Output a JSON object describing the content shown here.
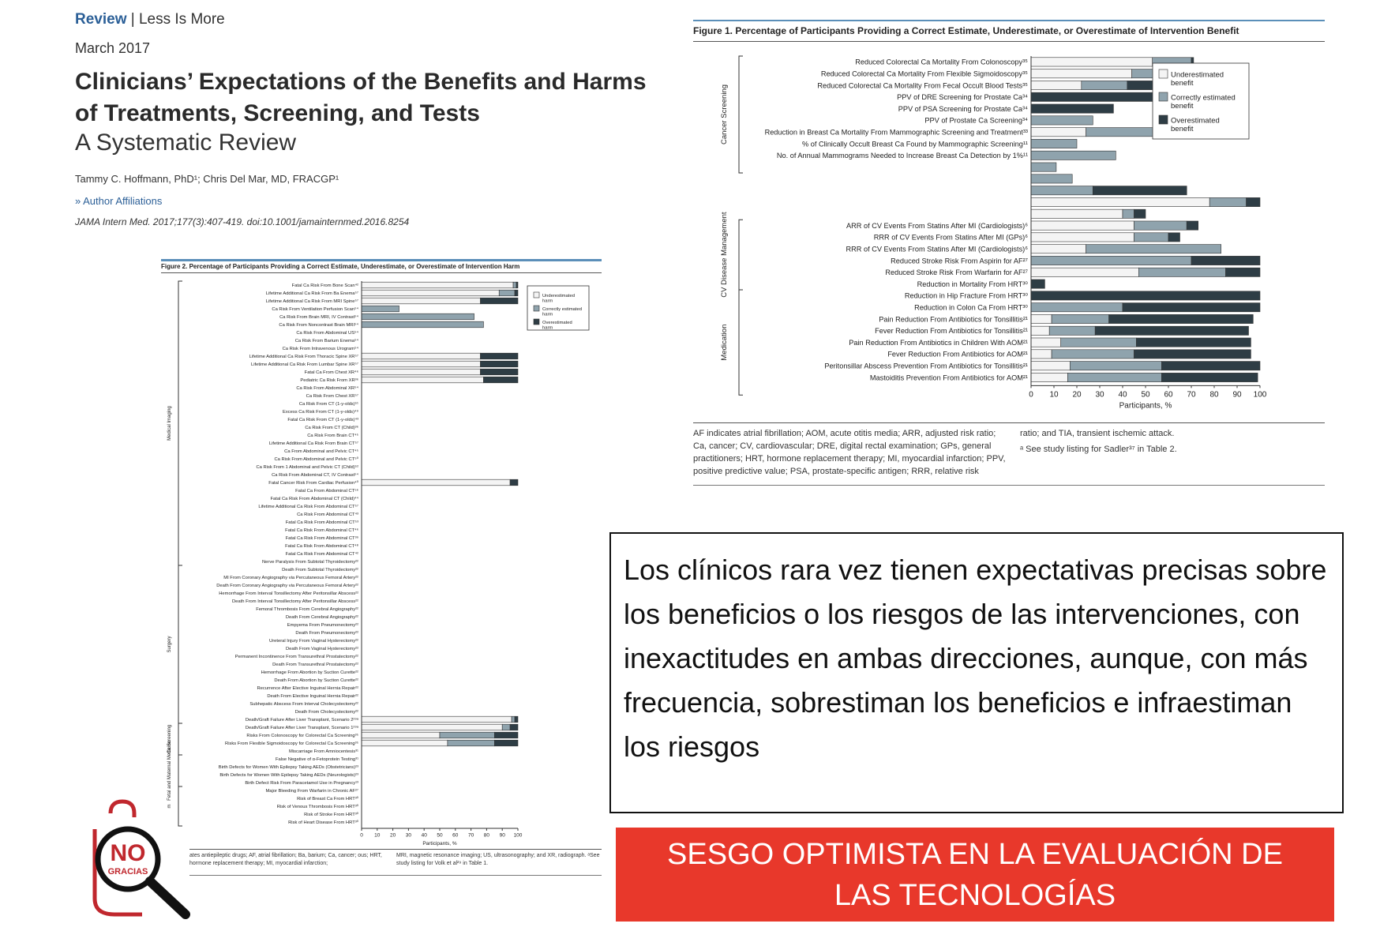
{
  "header": {
    "kind": "Review",
    "separator": "|",
    "topic": "Less Is More",
    "date": "March 2017",
    "title": "Clinicians’ Expectations of the Benefits and Harms of Treatments, Screening, and Tests",
    "subtitle": "A Systematic Review",
    "authors": "Tammy C. Hoffmann, PhD¹; Chris Del Mar, MD, FRACGP¹",
    "affiliations_link": "Author Affiliations",
    "affiliations_icon": "double-chevron-right-icon",
    "citation": "JAMA Intern Med. 2017;177(3):407-419. doi:10.1001/jamainternmed.2016.8254"
  },
  "figure_harms": {
    "title": "Figure 2. Percentage of Participants Providing a Correct Estimate, Underestimate, or Overestimate of Intervention Harm",
    "groups": [
      {
        "name": "Medical Imaging",
        "start": 0,
        "end": 35
      },
      {
        "name": "Surgery",
        "start": 36,
        "end": 55
      },
      {
        "name": "Ca Screening",
        "start": 56,
        "end": 59
      },
      {
        "name": "Fetal and Maternal Medicine",
        "start": 60,
        "end": 63
      },
      {
        "name": "m",
        "start": 64,
        "end": 68
      }
    ],
    "footnote_left": "ates antiepileptic drugs; AF, atrial fibrillation; Ba, barium; Ca, cancer; ous; HRT, hormone replacement therapy; MI, myocardial infarction;",
    "footnote_right": "MRI, magnetic resonance imaging; US, ultrasonography; and XR, radiograph. ᵃSee study listing for Volk et al²⁹ in Table 1."
  },
  "figure_benefits": {
    "title": "Figure 1. Percentage of Participants Providing a Correct Estimate, Underestimate, or Overestimate of Intervention Benefit",
    "groups": [
      {
        "name": "Cancer Screening",
        "start": 0,
        "end": 9
      },
      {
        "name": "CV Disease Management",
        "start": 14,
        "end": 19
      },
      {
        "name": "Medication",
        "start": 20,
        "end": 28
      }
    ],
    "footnote_left": "AF indicates atrial fibrillation; AOM, acute otitis media; ARR, adjusted risk ratio; Ca, cancer; CV, cardiovascular; DRE, digital rectal examination; GPs, general practitioners; HRT, hormone replacement therapy; MI, myocardial infarction; PPV, positive predictive value; PSA, prostate-specific antigen; RRR, relative risk",
    "footnote_right_1": "ratio; and TIA, transient ischemic attack.",
    "footnote_right_2": "ᵃ See study listing for Sadler³⁷ in Table 2."
  },
  "quote": "Los clínicos rara vez tienen expectativas precisas sobre los beneficios o los riesgos de las intervenciones, con inexactitudes en ambas direcciones, aunque, con más frecuencia, sobrestiman los beneficios e infraestiman los riesgos",
  "banner": {
    "line1": "SESGO OPTIMISTA EN LA EVALUACIÓN DE",
    "line2": "LAS TECNOLOGÍAS"
  },
  "logo": {
    "word1": "NO",
    "word2": "GRACIAS",
    "icon": "magnifying-glass-icon"
  },
  "colors": {
    "under": "#f4f4f4",
    "correct": "#8fa3ad",
    "over": "#2e3d45",
    "accent_blue": "#2b5f97",
    "banner_red": "#e8382b",
    "logo_red": "#c0272d"
  },
  "chart_data": [
    {
      "type": "bar",
      "stacked": "horizontal",
      "title": "Figure 1. Percentage of Participants Providing a Correct Estimate, Underestimate, or Overestimate of Intervention Benefit",
      "xlabel": "Participants, %",
      "xlim": [
        0,
        100
      ],
      "xticks": [
        0,
        10,
        20,
        30,
        40,
        50,
        60,
        70,
        80,
        90,
        100
      ],
      "legend": [
        "Underestimated benefit",
        "Correctly estimated benefit",
        "Overestimated benefit"
      ],
      "legend_position": "top-right",
      "categories": [
        "Reduced Colorectal Ca Mortality From Colonoscopy³⁵",
        "Reduced Colorectal Ca Mortality From Flexible Sigmoidoscopy³⁵",
        "Reduced Colorectal Ca Mortality From Fecal Occult Blood Tests³⁵",
        "PPV of DRE Screening for Prostate Ca³⁴",
        "PPV of PSA Screening for Prostate Ca³⁴",
        "PPV of Prostate Ca Screening³⁴",
        "Reduction in Breast Ca Mortality From Mammographic Screening and Treatment³³",
        "% of Clinically Occult Breast Ca Found by Mammographic Screening¹¹",
        "No. of Annual Mammograms Needed to Increase Breast Ca Detection by 1%¹¹",
        "",
        "",
        "",
        "",
        "",
        "ARR of CV Events From Statins After MI (Cardiologists)⁶",
        "RRR of CV Events From Statins After MI (GPs)⁶",
        "RRR of CV Events From Statins After MI (Cardiologists)⁶",
        "Reduced Stroke Risk From Aspirin for AF²⁷",
        "Reduced Stroke Risk From Warfarin for AF²⁷",
        "Reduction in Mortality From HRT³⁰",
        "Reduction in Hip Fracture From HRT³⁰",
        "Reduction in Colon Ca From HRT³⁰",
        "Pain Reduction From Antibiotics for Tonsillitis²¹",
        "Fever Reduction From Antibiotics for Tonsillitis²¹",
        "Pain Reduction From Antibiotics in Children With AOM²¹",
        "Fever Reduction From Antibiotics for AOM²¹",
        "Peritonsillar Abscess Prevention From Antibiotics for Tonsillitis²¹",
        "Mastoiditis Prevention From Antibiotics for AOM²¹"
      ],
      "series": [
        {
          "name": "Underestimated benefit",
          "values": [
            53,
            44,
            22,
            0,
            0,
            0,
            24,
            0,
            0,
            0,
            0,
            0,
            78,
            40,
            45,
            45,
            24,
            0,
            47,
            0,
            0,
            0,
            9,
            8,
            13,
            9,
            17,
            16
          ]
        },
        {
          "name": "Correctly estimated benefit",
          "values": [
            17,
            31,
            20,
            0,
            0,
            27,
            56,
            20,
            37,
            11,
            18,
            27,
            16,
            5,
            23,
            15,
            59,
            70,
            38,
            0,
            0,
            40,
            25,
            20,
            33,
            36,
            40,
            41
          ]
        },
        {
          "name": "Overestimated benefit",
          "values": [
            1,
            4,
            16,
            56,
            36,
            0,
            0,
            0,
            0,
            0,
            0,
            41,
            6,
            5,
            5,
            5,
            0,
            30,
            15,
            6,
            100,
            60,
            63,
            67,
            50,
            51,
            43,
            42
          ]
        }
      ]
    },
    {
      "type": "bar",
      "stacked": "horizontal",
      "title": "Figure 2. Percentage of Participants Providing a Correct Estimate, Underestimate, or Overestimate of Intervention Harm",
      "xlabel": "Participants, %",
      "xlim": [
        0,
        100
      ],
      "xticks": [
        0,
        10,
        20,
        30,
        40,
        50,
        60,
        70,
        80,
        90,
        100
      ],
      "legend": [
        "Underestimated harm",
        "Correctly estimated harm",
        "Overestimated harm"
      ],
      "legend_position": "top-right",
      "categories": [
        "Fatal Ca Risk From Bone Scan⁴²",
        "Lifetime Additional Ca Risk From Ba Enema⁵⁷",
        "Lifetime Additional Ca Risk From MRI Spine⁵⁷",
        "Ca Risk From Ventilation Perfusion Scan⁵⁴",
        "Ca Risk From Brain MRI, IV Contrast⁵⁴",
        "Ca Risk From Noncontrast Brain MRI⁵⁴",
        "Ca Risk From Abdominal US⁵⁴",
        "Ca Risk From Barium Enema⁵⁴",
        "Ca Risk From Intravenous Urogram⁵⁴",
        "Lifetime Additional Ca Risk From Thoracic Spine XR⁵⁷",
        "Lifetime Additional Ca Risk From Lumbar Spine XR⁵⁷",
        "Fatal Ca From Chest XR⁴⁶",
        "Pediatric Ca Risk From XR³⁶",
        "Ca Risk From Abdominal XR⁵⁴",
        "Ca Risk From Chest XR⁵⁷",
        "Ca Risk From CT (1-y-olds)⁵¹",
        "Excess Ca Risk From CT (1-y-olds)⁴⁹",
        "Fatal Ca Risk From CT (1-y-olds)⁴³",
        "Ca Risk From CT (Child)³⁶",
        "Ca Risk From Brain CT⁴⁵",
        "Lifetime Additional Ca Risk From Brain CT⁵⁷",
        "Ca From Abdominal and Pelvic CT⁴⁵",
        "Ca Risk From Abdominal and Pelvic CT⁵⁰",
        "Ca Risk From 1 Abdominal and Pelvic CT (Child)⁵²",
        "Ca Risk From Abdominal CT, IV Contrast⁵⁴",
        "Fatal Cancer Risk From Cardiac Perfusion⁴⁰",
        "Fatal Ca From Abdominal CT⁵⁶",
        "Fatal Ca Risk From Abdominal CT (Child)⁴⁴",
        "Lifetime Additional Ca Risk From Abdominal CT⁵⁷",
        "Ca Risk From Abdominal CT⁴³",
        "Fatal Ca Risk From Abdominal CT⁵³",
        "Fatal Ca Risk From Abdominal CT⁴⁶",
        "Fatal Ca Risk From Abdominal CT³⁹",
        "Fatal Ca Risk From Abdominal CT⁴⁸",
        "Fatal Ca Risk From Abdominal CT⁴²",
        "Nerve Paralysis From Subtotal Thyroidectomy²²",
        "Death From Subtotal Thyroidectomy²²",
        "MI From Coronary Angiography via Percutaneous Femoral Artery²²",
        "Death From Coronary Angiography via Percutaneous Femoral Artery²²",
        "Hemorrhage From Interval Tonsillectomy After Peritonsillar Abscess²²",
        "Death From Interval Tonsillectomy After Peritonsillar Abscess²²",
        "Femoral Thrombosis From Cerebral Angiography²²",
        "Death From Cerebral Angiography²²",
        "Empyema From Pneumonectomy²²",
        "Death From Pneumonectomy²²",
        "Ureteral Injury From Vaginal Hysterectomy²²",
        "Death From Vaginal Hysterectomy²²",
        "Permanent Incontinence From Transurethral Prostatectomy²²",
        "Death From Transurethral Prostatectomy²²",
        "Hemorrhage From Abortion by Suction Curette²²",
        "Death From Abortion by Suction Curette²²",
        "Recurrence After Elective Inguinal Hernia Repair²²",
        "Death From Elective Inguinal Hernia Repair²²",
        "Subhepatic Abscess From Interval Cholecystectomy²²",
        "Death From Cholecystectomy²²",
        "Death/Graft Failure After Liver Transplant, Scenario 2²⁹ᵃ",
        "Death/Graft Failure After Liver Transplant, Scenario 1²⁹ᵃ",
        "Risks From Colonoscopy for Colorectal Ca Screening³⁵",
        "Risks From Flexible Sigmoidoscopy for Colorectal Ca Screening³⁵",
        "Miscarriage From Amniocentesis³¹",
        "False Negative of α-Fetoprotein Testing³¹",
        "Birth Defects for Women With Epilepsy Taking AEDs (Obstetricians)²³",
        "Birth Defects for Women With Epilepsy Taking AEDs (Neurologists)²³",
        "Birth Defect Risk From Paracetamol Use in Pregnancy¹³",
        "Major Bleeding From Warfarin in Chronic AF²⁷",
        "Risk of Breast Ca From HRT³⁰",
        "Risk of Venous Thrombosis From HRT³⁰",
        "Risk of Stroke From HRT³⁰",
        "Risk of Heart Disease From HRT³⁰"
      ],
      "series": [
        {
          "name": "Underestimated harm",
          "values": [
            97,
            88,
            76,
            0,
            0,
            0,
            0,
            0,
            0,
            76,
            76,
            76,
            78,
            0,
            0,
            0,
            0,
            0,
            0,
            0,
            0,
            0,
            0,
            0,
            0,
            95,
            0,
            0,
            0,
            0,
            0,
            0,
            0,
            0,
            0,
            0,
            0,
            0,
            0,
            0,
            0,
            0,
            0,
            0,
            0,
            0,
            0,
            0,
            0,
            0,
            0,
            0,
            0,
            0,
            0,
            96,
            90,
            50,
            55,
            0,
            0,
            0,
            0,
            0,
            0,
            0,
            0,
            0,
            0
          ]
        },
        {
          "name": "Correctly estimated harm",
          "values": [
            2,
            10,
            0,
            24,
            72,
            78,
            0,
            0,
            0,
            0,
            0,
            0,
            0,
            0,
            0,
            0,
            0,
            0,
            0,
            0,
            0,
            0,
            0,
            0,
            0,
            0,
            0,
            0,
            0,
            0,
            0,
            0,
            0,
            0,
            0,
            0,
            0,
            0,
            0,
            0,
            0,
            0,
            0,
            0,
            0,
            0,
            0,
            0,
            0,
            0,
            0,
            0,
            0,
            0,
            0,
            2,
            5,
            35,
            30,
            0,
            0,
            0,
            0,
            0,
            0,
            0,
            0,
            0,
            0
          ]
        },
        {
          "name": "Overestimated harm",
          "values": [
            1,
            2,
            24,
            0,
            0,
            0,
            0,
            0,
            0,
            24,
            24,
            24,
            22,
            0,
            0,
            0,
            0,
            0,
            0,
            0,
            0,
            0,
            0,
            0,
            0,
            5,
            0,
            0,
            0,
            0,
            0,
            0,
            0,
            0,
            0,
            0,
            0,
            0,
            0,
            0,
            0,
            0,
            0,
            0,
            0,
            0,
            0,
            0,
            0,
            0,
            0,
            0,
            0,
            0,
            0,
            2,
            5,
            15,
            15,
            0,
            0,
            0,
            0,
            0,
            0,
            0,
            0,
            0,
            0
          ]
        }
      ]
    }
  ]
}
